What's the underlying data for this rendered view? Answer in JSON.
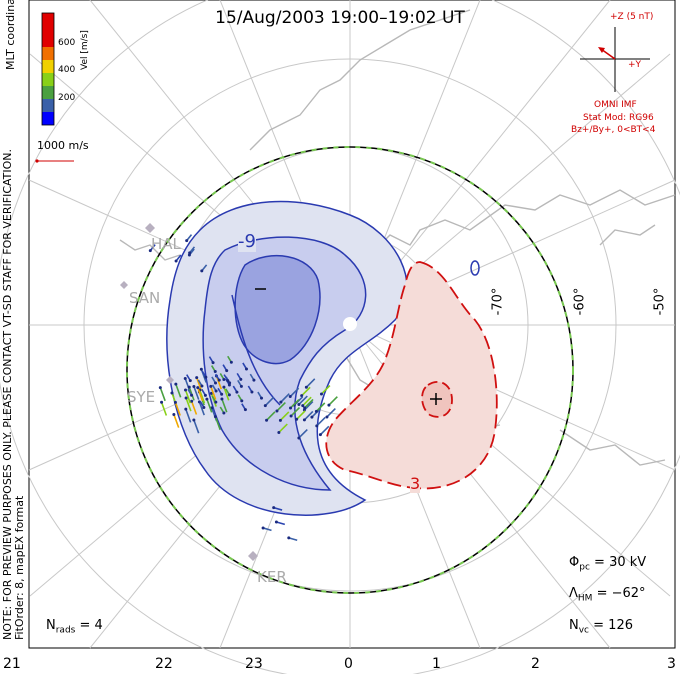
{
  "title": "15/Aug/2003 19:00–19:02 UT",
  "side_note": {
    "line1": "NOTE: FOR PREVIEW PURPOSES ONLY. PLEASE CONTACT VT-SD STAFF FOR VERIFICATION.",
    "line2": "FitOrder: 8, mapEX format",
    "coords": "MLT coordinates"
  },
  "colorbar": {
    "label": "Vel [m/s]",
    "ticks": [
      "600",
      "400",
      "200"
    ],
    "colors": [
      "#0000ff",
      "#3a60a8",
      "#4aa040",
      "#88d018",
      "#f0d000",
      "#f07000",
      "#e00000"
    ]
  },
  "vector_scale": {
    "label": "1000 m/s"
  },
  "imf": {
    "z_label": "+Z (5 nT)",
    "y_label": "+Y",
    "source": "OMNI IMF",
    "stat_mod": "Stat Mod: RG96",
    "condition": "Bz+/By+, 0<BT<4"
  },
  "contour_labels": {
    "neg_level": "-9",
    "pos_level": "3",
    "min_marker": "–",
    "max_marker": "+"
  },
  "lat_labels": [
    "-70°",
    "-60°",
    "-50°"
  ],
  "mlt_labels": [
    "21",
    "22",
    "23",
    "0",
    "1",
    "2",
    "3"
  ],
  "stations": [
    "HAL",
    "SAN",
    "SYE",
    "KER"
  ],
  "stats": {
    "phi_pc": {
      "symbol": "Φ",
      "sub": "pc",
      "value": "= 30 kV"
    },
    "lambda_hm": {
      "symbol": "Λ",
      "sub": "HM",
      "value": "= −62°"
    },
    "n_vc": {
      "symbol": "N",
      "sub": "vc",
      "value": "= 126"
    },
    "n_rads": {
      "symbol": "N",
      "sub": "rads",
      "value": "= 4"
    }
  },
  "colors": {
    "negative_cell": "#2a3ab0",
    "positive_cell": "#d01010",
    "hmb": "#78c850",
    "coast": "#b8b8b8",
    "grid": "#c8c8c8"
  }
}
